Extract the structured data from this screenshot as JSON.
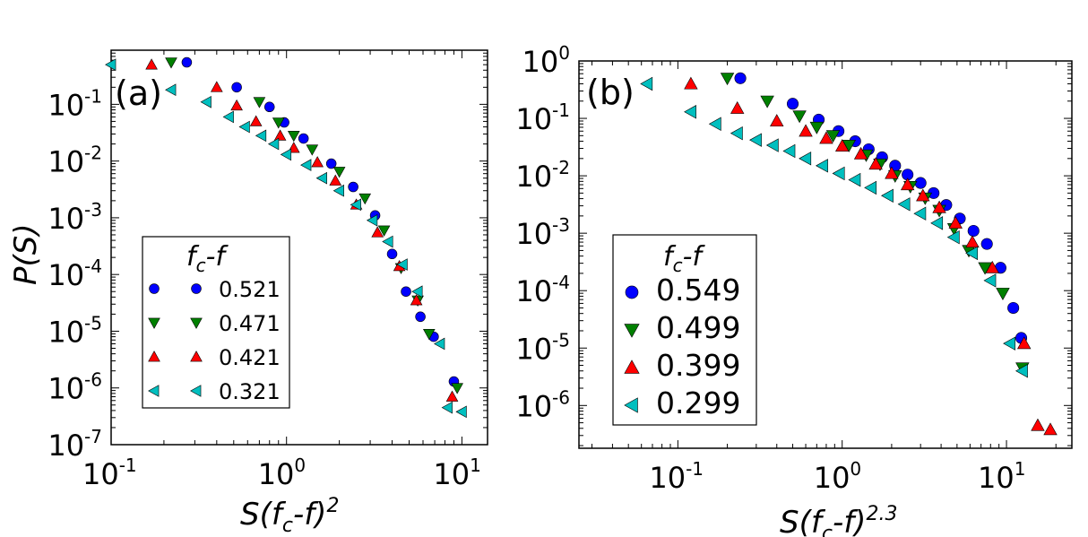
{
  "chart_data": [
    {
      "type": "scatter",
      "panel_label": "(a)",
      "xscale": "log",
      "yscale": "log",
      "xlim": [
        0.1,
        14
      ],
      "ylim": [
        1e-07,
        0.9
      ],
      "xlabel": {
        "base": "S(f",
        "sub": "c",
        "rest": "-f)",
        "sup": "2"
      },
      "ylabel": "P(S)",
      "xticks": [
        {
          "value": 0.1,
          "base": "10",
          "exp": "-1"
        },
        {
          "value": 1,
          "base": "10",
          "exp": "0"
        },
        {
          "value": 10,
          "base": "10",
          "exp": "1"
        }
      ],
      "yticks": [
        {
          "value": 1e-07,
          "base": "10",
          "exp": "-7"
        },
        {
          "value": 1e-06,
          "base": "10",
          "exp": "-6"
        },
        {
          "value": 1e-05,
          "base": "10",
          "exp": "-5"
        },
        {
          "value": 0.0001,
          "base": "10",
          "exp": "-4"
        },
        {
          "value": 0.001,
          "base": "10",
          "exp": "-3"
        },
        {
          "value": 0.01,
          "base": "10",
          "exp": "-2"
        },
        {
          "value": 0.1,
          "base": "10",
          "exp": "-1"
        }
      ],
      "legend": {
        "title_base": "f",
        "title_sub": "c",
        "title_rest": "-f",
        "placement": "lower-left",
        "markers_per_entry": 2
      },
      "series": [
        {
          "name": "0.521",
          "marker": "circle",
          "color": "#0000ff",
          "x": [
            0.27,
            0.52,
            0.8,
            0.97,
            1.25,
            1.8,
            2.4,
            3.2,
            4.0,
            4.8,
            5.8,
            6.9,
            9.0
          ],
          "y": [
            0.55,
            0.2,
            0.09,
            0.048,
            0.025,
            0.009,
            0.0035,
            0.0011,
            0.00023,
            5e-05,
            1.8e-05,
            8e-06,
            1.3e-06
          ]
        },
        {
          "name": "0.471",
          "marker": "triangle-down",
          "color": "#008000",
          "x": [
            0.22,
            0.7,
            0.9,
            1.1,
            1.4,
            2.0,
            2.8,
            3.6,
            4.5,
            5.6,
            6.5,
            9.4
          ],
          "y": [
            0.55,
            0.11,
            0.048,
            0.028,
            0.016,
            0.0065,
            0.0022,
            0.0006,
            0.00013,
            3.5e-05,
            9e-06,
            1e-06
          ]
        },
        {
          "name": "0.421",
          "marker": "triangle-up",
          "color": "#ff0000",
          "x": [
            0.17,
            0.4,
            0.52,
            0.67,
            0.92,
            1.1,
            1.5,
            1.9,
            2.5,
            3.3,
            4.4,
            5.5,
            8.8
          ],
          "y": [
            0.5,
            0.2,
            0.095,
            0.05,
            0.028,
            0.017,
            0.0095,
            0.0045,
            0.0017,
            0.00055,
            0.00014,
            3.5e-05,
            7e-07
          ]
        },
        {
          "name": "0.321",
          "marker": "triangle-left",
          "color": "#00bfbf",
          "x": [
            0.1,
            0.22,
            0.35,
            0.47,
            0.58,
            0.72,
            0.85,
            1.0,
            1.3,
            1.6,
            2.0,
            2.5,
            3.1,
            3.8,
            4.6,
            5.6,
            7.5,
            8.3,
            10.0
          ],
          "y": [
            0.5,
            0.18,
            0.11,
            0.06,
            0.04,
            0.028,
            0.02,
            0.013,
            0.0085,
            0.005,
            0.003,
            0.0017,
            0.0009,
            0.00038,
            0.00015,
            5e-05,
            6e-06,
            4.5e-07,
            3.8e-07
          ]
        }
      ]
    },
    {
      "type": "scatter",
      "panel_label": "(b)",
      "xscale": "log",
      "yscale": "log",
      "xlim": [
        0.025,
        25
      ],
      "ylim": [
        1.8e-07,
        1
      ],
      "xlabel": {
        "base": "S(f",
        "sub": "c",
        "rest": "-f)",
        "sup": "2.3"
      },
      "ylabel": "",
      "xticks": [
        {
          "value": 0.1,
          "base": "10",
          "exp": "-1"
        },
        {
          "value": 1,
          "base": "10",
          "exp": "0"
        },
        {
          "value": 10,
          "base": "10",
          "exp": "1"
        }
      ],
      "yticks": [
        {
          "value": 1e-06,
          "base": "10",
          "exp": "-6"
        },
        {
          "value": 1e-05,
          "base": "10",
          "exp": "-5"
        },
        {
          "value": 0.0001,
          "base": "10",
          "exp": "-4"
        },
        {
          "value": 0.001,
          "base": "10",
          "exp": "-3"
        },
        {
          "value": 0.01,
          "base": "10",
          "exp": "-2"
        },
        {
          "value": 0.1,
          "base": "10",
          "exp": "-1"
        },
        {
          "value": 1,
          "base": "10",
          "exp": "0"
        }
      ],
      "legend": {
        "title_base": "f",
        "title_sub": "c",
        "title_rest": "-f",
        "placement": "lower-left",
        "markers_per_entry": 1
      },
      "series": [
        {
          "name": "0.549",
          "marker": "circle",
          "color": "#0000ff",
          "x": [
            0.24,
            0.5,
            0.72,
            0.95,
            1.2,
            1.45,
            1.75,
            2.1,
            2.5,
            3.0,
            3.6,
            4.3,
            5.2,
            6.3,
            7.6,
            9.2,
            11.0,
            12.3
          ],
          "y": [
            0.5,
            0.18,
            0.095,
            0.06,
            0.04,
            0.029,
            0.021,
            0.015,
            0.0105,
            0.0075,
            0.005,
            0.0031,
            0.0018,
            0.0011,
            0.00065,
            0.00025,
            5e-05,
            1.5e-05
          ]
        },
        {
          "name": "0.499",
          "marker": "triangle-down",
          "color": "#008000",
          "x": [
            0.2,
            0.35,
            0.55,
            0.7,
            0.88,
            1.1,
            1.4,
            1.7,
            2.1,
            2.6,
            3.2,
            3.9,
            4.8,
            5.9,
            7.4,
            9.5,
            12.5
          ],
          "y": [
            0.5,
            0.2,
            0.11,
            0.07,
            0.05,
            0.034,
            0.023,
            0.016,
            0.01,
            0.0065,
            0.0041,
            0.0025,
            0.0012,
            0.0005,
            0.00025,
            9e-05,
            4.5e-06
          ]
        },
        {
          "name": "0.399",
          "marker": "triangle-up",
          "color": "#ff0000",
          "x": [
            0.12,
            0.23,
            0.4,
            0.6,
            0.8,
            1.0,
            1.3,
            1.6,
            2.0,
            2.5,
            3.1,
            3.9,
            4.9,
            6.2,
            8.2,
            12.8,
            15.5,
            18.5
          ],
          "y": [
            0.4,
            0.15,
            0.09,
            0.06,
            0.045,
            0.033,
            0.024,
            0.016,
            0.011,
            0.007,
            0.0045,
            0.0028,
            0.0015,
            0.0007,
            0.00025,
            1.2e-05,
            4.5e-07,
            3.8e-07
          ]
        },
        {
          "name": "0.299",
          "marker": "triangle-left",
          "color": "#00bfbf",
          "x": [
            0.065,
            0.12,
            0.17,
            0.23,
            0.3,
            0.38,
            0.48,
            0.6,
            0.76,
            0.96,
            1.2,
            1.5,
            1.9,
            2.4,
            3.0,
            3.8,
            4.8,
            6.2,
            8.0,
            10.5,
            12.5
          ],
          "y": [
            0.4,
            0.13,
            0.08,
            0.055,
            0.042,
            0.034,
            0.027,
            0.02,
            0.015,
            0.011,
            0.0085,
            0.0062,
            0.0045,
            0.0032,
            0.0022,
            0.0015,
            0.00085,
            0.00045,
            0.00015,
            1.2e-05,
            4e-06
          ]
        }
      ]
    }
  ]
}
